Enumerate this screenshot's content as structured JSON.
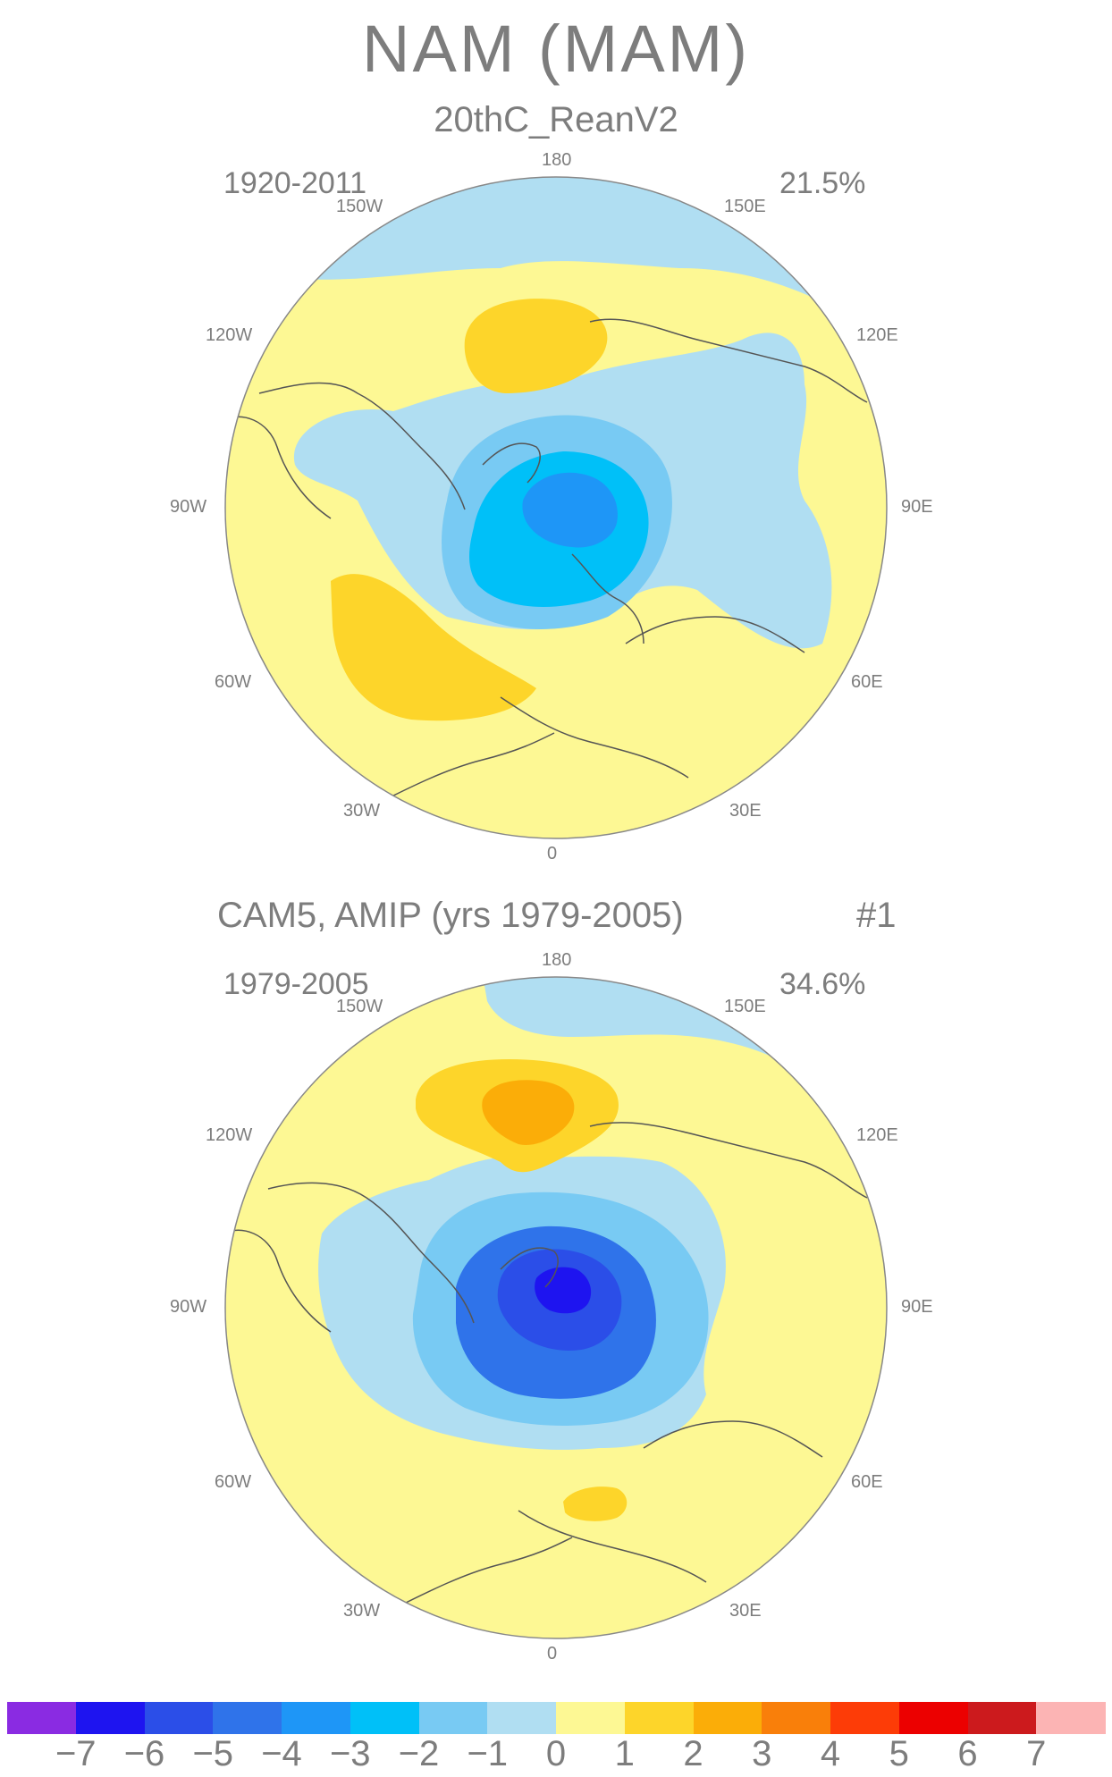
{
  "title": "NAM (MAM)",
  "colors": {
    "ocean_neutral": "#fdf894",
    "coast": "#555555",
    "rim": "#888888"
  },
  "panels": [
    {
      "title": "20thC_ReanV2",
      "period": "1920-2011",
      "variance": "21.5%",
      "suffix": "",
      "lon_labels": {
        "n": "180",
        "s": "0",
        "w150": "150W",
        "w120": "120W",
        "w90": "90W",
        "w60": "60W",
        "w30": "30W",
        "e150": "150E",
        "e120": "120E",
        "e90": "90E",
        "e60": "60E",
        "e30": "30E"
      }
    },
    {
      "title": "CAM5, AMIP (yrs 1979-2005)",
      "period": "1979-2005",
      "variance": "34.6%",
      "suffix": "#1",
      "lon_labels": {
        "n": "180",
        "s": "0",
        "w150": "150W",
        "w120": "120W",
        "w90": "90W",
        "w60": "60W",
        "w30": "30W",
        "e150": "150E",
        "e120": "120E",
        "e90": "90E",
        "e60": "60E",
        "e30": "30E"
      }
    }
  ],
  "colorbar": {
    "colors": [
      "#8a2be2",
      "#1e14f0",
      "#2b4ee8",
      "#2f73ea",
      "#1e96f7",
      "#00c0f8",
      "#78caf3",
      "#b0def2",
      "#fdf894",
      "#fdd52a",
      "#fbad08",
      "#f97f0a",
      "#fd3c07",
      "#ec0000",
      "#cc1a1d",
      "#fcb4b4"
    ],
    "labels": [
      "-7",
      "-6",
      "-5",
      "-4",
      "-3",
      "-2",
      "-1",
      "0",
      "1",
      "2",
      "3",
      "4",
      "5",
      "6",
      "7"
    ]
  }
}
